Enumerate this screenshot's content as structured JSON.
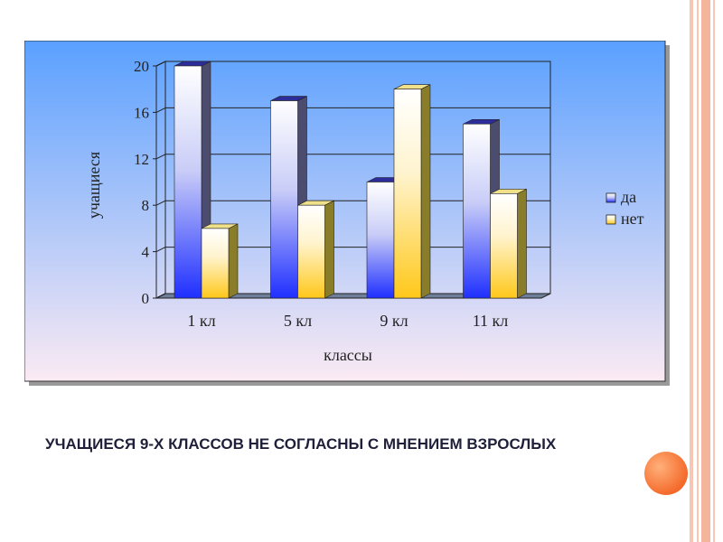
{
  "slide": {
    "caption": "УЧАЩИЕСЯ 9-Х КЛАССОВ НЕ СОГЛАСНЫ С МНЕНИЕМ ВЗРОСЛЫХ",
    "accent_color": "#f46b2c",
    "stripe_color": "#f7c7b4"
  },
  "chart_data": {
    "type": "bar",
    "style": "3d-clustered-column",
    "categories": [
      "1 кл",
      "5 кл",
      "9 кл",
      "11 кл"
    ],
    "series": [
      {
        "name": "да",
        "values": [
          20,
          17,
          10,
          15
        ],
        "color": "#1f2fff"
      },
      {
        "name": "нет",
        "values": [
          6,
          8,
          18,
          9
        ],
        "color": "#ffc81a"
      }
    ],
    "title": "",
    "xlabel": "классы",
    "ylabel": "учащиеся",
    "ylim": [
      0,
      20
    ],
    "yticks": [
      "0",
      "4",
      "8",
      "12",
      "16",
      "20"
    ],
    "grid": true,
    "legend": "right",
    "background": {
      "top": "#5aa0ff",
      "bottom": "#fbeaf3"
    }
  }
}
